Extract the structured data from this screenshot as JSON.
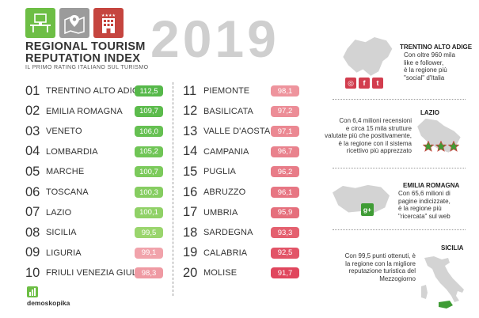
{
  "header": {
    "title_line1": "REGIONAL TOURISM",
    "title_line2": "REPUTATION INDEX",
    "subtitle": "IL PRIMO RATING ITALIANO SUL TURISMO",
    "year": "2019",
    "logo_icons": [
      "desk-computer-icon",
      "map-pin-icon",
      "hotel-building-icon"
    ]
  },
  "colors": {
    "green_top": "#57b948",
    "green_light": "#9ed46b",
    "red_light": "#ec8c95",
    "red_dark": "#e0435e",
    "map_gray": "#d3d3d3",
    "accent_green": "#3f9c35"
  },
  "rankings": [
    {
      "rank": "01",
      "region": "TRENTINO ALTO ADIGE",
      "score": "112,5",
      "color": "#56b84a"
    },
    {
      "rank": "02",
      "region": "EMILIA ROMAGNA",
      "score": "109,7",
      "color": "#5cbb4c"
    },
    {
      "rank": "03",
      "region": "VENETO",
      "score": "106,0",
      "color": "#66c052"
    },
    {
      "rank": "04",
      "region": "LOMBARDIA",
      "score": "105,2",
      "color": "#70c556"
    },
    {
      "rank": "05",
      "region": "MARCHE",
      "score": "100,7",
      "color": "#7cca5c"
    },
    {
      "rank": "06",
      "region": "TOSCANA",
      "score": "100,3",
      "color": "#86cd61"
    },
    {
      "rank": "07",
      "region": "LAZIO",
      "score": "100,1",
      "color": "#90d167"
    },
    {
      "rank": "08",
      "region": "SICILIA",
      "score": "99,5",
      "color": "#9ad56d"
    },
    {
      "rank": "09",
      "region": "LIGURIA",
      "score": "99,1",
      "color": "#f1a3ab"
    },
    {
      "rank": "10",
      "region": "FRIULI VENEZIA GIULIA",
      "score": "98,3",
      "color": "#ef9aa3"
    },
    {
      "rank": "11",
      "region": "PIEMONTE",
      "score": "98,1",
      "color": "#ee949d"
    },
    {
      "rank": "12",
      "region": "BASILICATA",
      "score": "97,2",
      "color": "#ec8d97"
    },
    {
      "rank": "13",
      "region": "VALLE D'AOSTA",
      "score": "97,1",
      "color": "#eb8892"
    },
    {
      "rank": "14",
      "region": "CAMPANIA",
      "score": "96,7",
      "color": "#e9828d"
    },
    {
      "rank": "15",
      "region": "PUGLIA",
      "score": "96,2",
      "color": "#e87c88"
    },
    {
      "rank": "16",
      "region": "ABRUZZO",
      "score": "96,1",
      "color": "#e77683"
    },
    {
      "rank": "17",
      "region": "UMBRIA",
      "score": "95,9",
      "color": "#e56f7c"
    },
    {
      "rank": "18",
      "region": "SARDEGNA",
      "score": "93,3",
      "color": "#e4606f"
    },
    {
      "rank": "19",
      "region": "CALABRIA",
      "score": "92,5",
      "color": "#e25467"
    },
    {
      "rank": "20",
      "region": "MOLISE",
      "score": "91,7",
      "color": "#e0465d"
    }
  ],
  "info": {
    "trentino": {
      "title": "TRENTINO ALTO ADIGE",
      "lines": [
        "Con oltre 960 mila",
        "like e follower,",
        "è la regione più",
        "\"social\" d'Italia"
      ],
      "icons": [
        "instagram-icon",
        "facebook-icon",
        "twitter-icon"
      ],
      "glyphs": [
        "◎",
        "f",
        "t"
      ]
    },
    "lazio": {
      "title": "LAZIO",
      "lines": [
        "Con 6,4 milioni recensioni",
        "e circa 15 mila strutture",
        "valutate più che positivamente,",
        "è la regione con il sistema",
        "ricettivo più apprezzato"
      ]
    },
    "emilia": {
      "title": "EMILIA ROMAGNA",
      "lines": [
        "Con 65,6 milioni di",
        "pagine indicizzate,",
        "è la regione più",
        "\"ricercata\" sul web"
      ],
      "glyph": "g+"
    },
    "sicilia": {
      "title": "SICILIA",
      "lines": [
        "Con 99,5 punti ottenuti, è",
        "la regione con la migliore",
        "reputazione turistica del",
        "Mezzogiorno"
      ]
    }
  },
  "footer": {
    "brand": "demoskopika"
  }
}
